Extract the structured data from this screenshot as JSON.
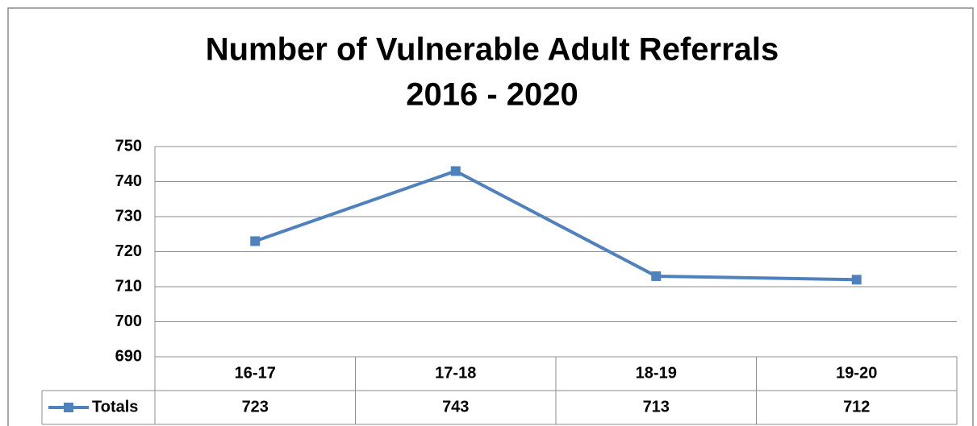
{
  "chart_data": {
    "type": "line",
    "title": [
      "Number of Vulnerable Adult Referrals",
      "2016 - 2020"
    ],
    "categories": [
      "16-17",
      "17-18",
      "18-19",
      "19-20"
    ],
    "series": [
      {
        "name": "Totals",
        "color": "#4f81bd",
        "values": [
          723,
          743,
          713,
          712
        ]
      }
    ],
    "ylim": [
      690,
      750
    ],
    "yticks": [
      690,
      700,
      710,
      720,
      730,
      740,
      750
    ],
    "grid": true,
    "data_table": true
  }
}
